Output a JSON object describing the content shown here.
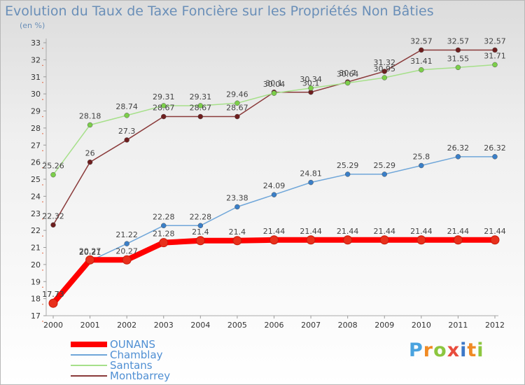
{
  "title": "Evolution du Taux de Taxe Foncière sur les Propriétés Non Bâties",
  "subtitle": "(en %)",
  "brand": {
    "letters": [
      "P",
      "r",
      "o",
      "x",
      "i",
      "t",
      "i"
    ],
    "colors": [
      "#4aa3df",
      "#f08a24",
      "#8cc63f",
      "#e84c3d",
      "#3c78c8",
      "#f08a24",
      "#8cc63f"
    ]
  },
  "chart_data": {
    "type": "line",
    "x": [
      "2000",
      "2001",
      "2002",
      "2003",
      "2004",
      "2005",
      "2006",
      "2007",
      "2008",
      "2009",
      "2010",
      "2011",
      "2012"
    ],
    "ylim": [
      17,
      33
    ],
    "yticks": [
      "17",
      "18",
      "19",
      "20",
      "21",
      "22",
      "23",
      "24",
      "25",
      "26",
      "27",
      "28",
      "29",
      "30",
      "31",
      "32",
      "33"
    ],
    "grid": false,
    "legend_position": "bottom-left",
    "series": [
      {
        "name": "OUNANS",
        "color": "#ff0000",
        "marker": "#e8301c",
        "width": 8,
        "values": [
          17.73,
          20.27,
          20.27,
          21.28,
          21.4,
          21.4,
          21.44,
          21.44,
          21.44,
          21.44,
          21.44,
          21.44,
          21.44
        ],
        "labels": [
          "17.73",
          "20.27",
          "20.27",
          "21.28",
          "21.4",
          "21.4",
          "21.44",
          "21.44",
          "21.44",
          "21.44",
          "21.44",
          "21.44",
          "21.44"
        ]
      },
      {
        "name": "Chamblay",
        "color": "#6fa6d9",
        "marker": "#3a7fc8",
        "width": 1.5,
        "values": [
          17.73,
          20.21,
          21.22,
          22.28,
          22.28,
          23.38,
          24.09,
          24.81,
          25.29,
          25.29,
          25.8,
          26.32,
          26.32
        ],
        "labels": [
          "17.73",
          "20.21",
          "21.22",
          "22.28",
          "22.28",
          "23.38",
          "24.09",
          "24.81",
          "25.29",
          "25.29",
          "25.8",
          "26.32",
          "26.32"
        ]
      },
      {
        "name": "Santans",
        "color": "#a6e08a",
        "marker": "#7ccf4a",
        "width": 1.5,
        "values": [
          25.26,
          28.18,
          28.74,
          29.31,
          29.31,
          29.46,
          30.04,
          30.34,
          30.64,
          30.95,
          31.41,
          31.55,
          31.71
        ],
        "labels": [
          "25.26",
          "28.18",
          "28.74",
          "29.31",
          "29.31",
          "29.46",
          "30.04",
          "30.34",
          "30.64",
          "30.95",
          "31.41",
          "31.55",
          "31.71"
        ]
      },
      {
        "name": "Montbarrey",
        "color": "#8a3a3a",
        "marker": "#6e1e1e",
        "width": 1.5,
        "values": [
          22.32,
          26,
          27.3,
          28.67,
          28.67,
          28.67,
          30.1,
          30.1,
          30.7,
          31.32,
          32.57,
          32.57,
          32.57
        ],
        "labels": [
          "22.32",
          "26",
          "27.3",
          "28.67",
          "28.67",
          "28.67",
          "30.1",
          "30.1",
          "30.7",
          "31.32",
          "32.57",
          "32.57",
          "32.57"
        ]
      }
    ]
  }
}
